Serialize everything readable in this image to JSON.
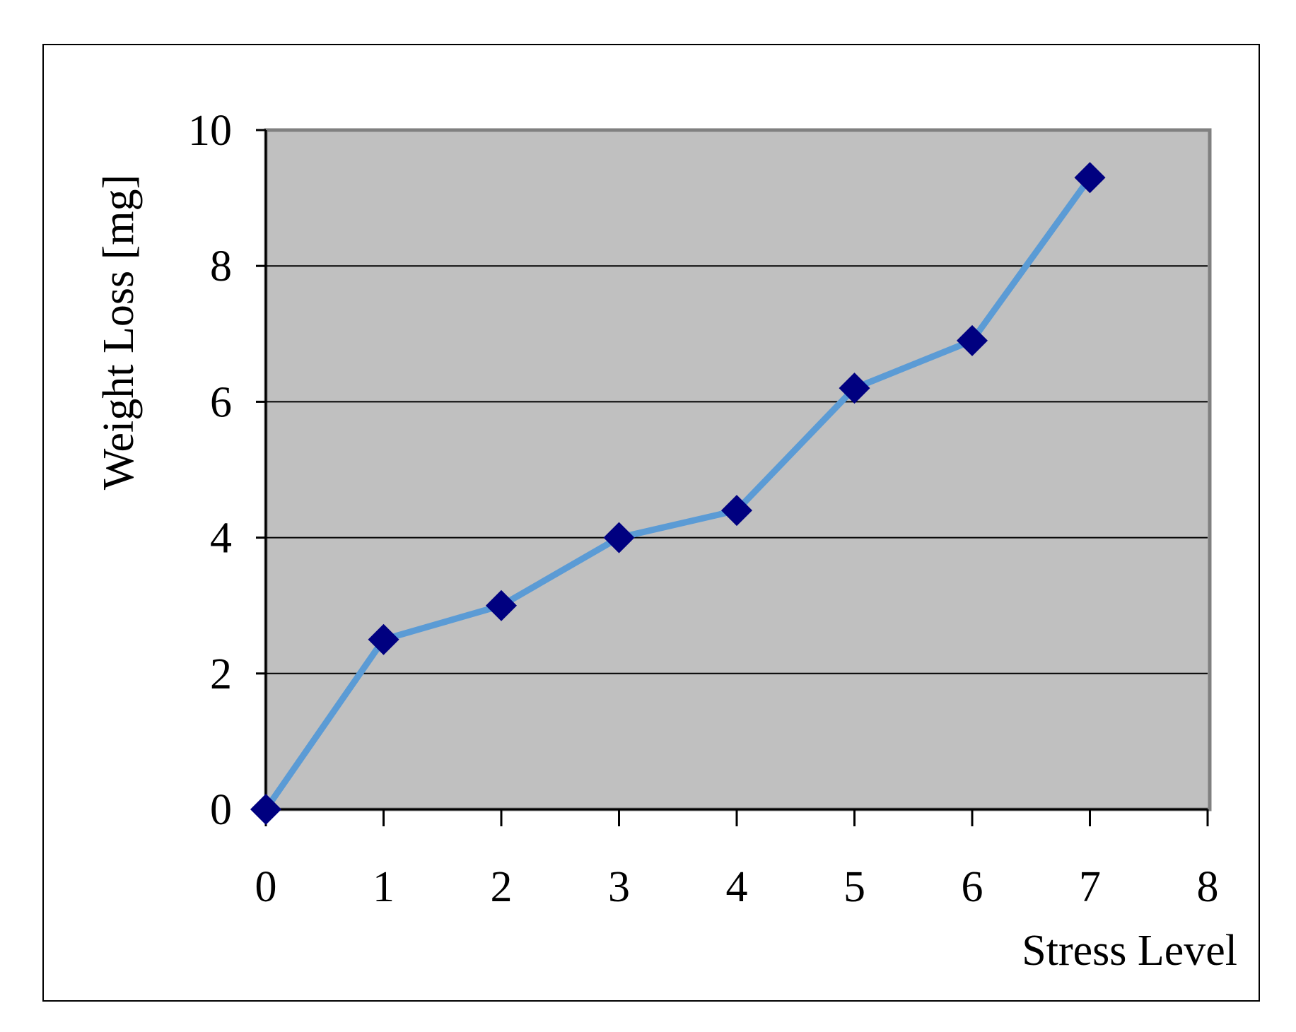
{
  "chart_data": {
    "type": "line",
    "title": "",
    "xlabel": "Stress Level",
    "ylabel": "Weight Loss [mg]",
    "xlim": [
      0,
      8
    ],
    "ylim": [
      0,
      10
    ],
    "x_ticks": [
      "0",
      "1",
      "2",
      "3",
      "4",
      "5",
      "6",
      "7",
      "8"
    ],
    "y_ticks": [
      "0",
      "2",
      "4",
      "6",
      "8",
      "10"
    ],
    "grid": "horizontal",
    "legend": "none",
    "series": [
      {
        "x": [
          0,
          1,
          2,
          3,
          4,
          5,
          6,
          7
        ],
        "y": [
          0,
          2.5,
          3,
          4,
          4.4,
          6.2,
          6.9,
          9.3
        ]
      }
    ],
    "colors": {
      "plot_background": "#c0c0c0",
      "line": "#5b9bd5",
      "marker": "#000080",
      "gridline": "#000000",
      "plot_border": "#808080"
    },
    "marker_icon": "diamond-marker-icon"
  }
}
